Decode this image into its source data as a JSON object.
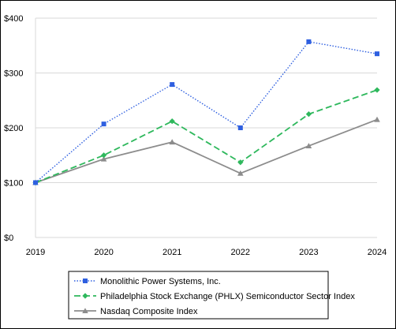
{
  "chart_data": {
    "type": "line",
    "title": "",
    "xlabel": "",
    "ylabel": "",
    "x": [
      "2019",
      "2020",
      "2021",
      "2022",
      "2023",
      "2024"
    ],
    "ylim": [
      0,
      400
    ],
    "yticks": [
      0,
      100,
      200,
      300,
      400
    ],
    "ytick_labels": [
      "$0",
      "$100",
      "$200",
      "$300",
      "$400"
    ],
    "grid": "horizontal",
    "legend_position": "bottom",
    "series": [
      {
        "name": "Monolithic Power Systems, Inc.",
        "values": [
          100,
          207,
          279,
          200,
          357,
          335
        ],
        "color": "#2E5FE0",
        "line_style": "dotted",
        "marker": "square"
      },
      {
        "name": "Philadelphia Stock Exchange (PHLX) Semiconductor Sector Index",
        "values": [
          100,
          150,
          212,
          137,
          225,
          269
        ],
        "color": "#2EB85C",
        "line_style": "dashed",
        "marker": "diamond"
      },
      {
        "name": "Nasdaq Composite Index",
        "values": [
          100,
          143,
          174,
          117,
          167,
          215
        ],
        "color": "#8C8C8C",
        "line_style": "solid",
        "marker": "triangle"
      }
    ]
  }
}
